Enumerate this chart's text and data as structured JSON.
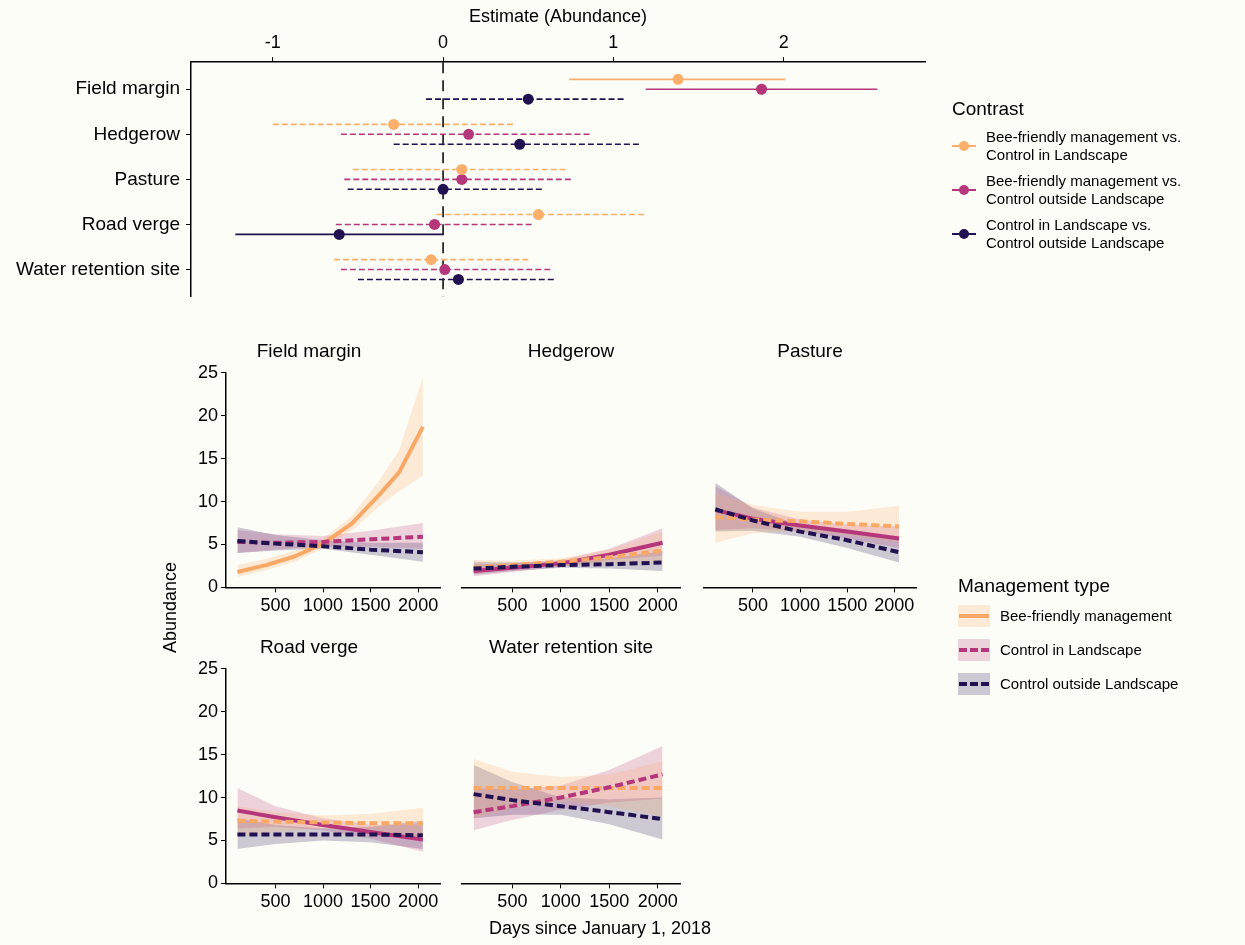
{
  "chart_data": [
    {
      "type": "scatter",
      "orientation": "horizontal",
      "xlabel": "Estimate (Abundance)",
      "legend": "right",
      "legend_title": "Contrast",
      "marker": "circle",
      "categories": [
        "Field margin",
        "Hedgerow",
        "Pasture",
        "Road verge",
        "Water retention site"
      ],
      "xlim": [
        -1.48,
        2.83
      ],
      "xticks": [
        -1,
        0,
        1,
        2
      ],
      "ref_lines": [
        {
          "axis": "x",
          "value": 0,
          "line_style": "dashed",
          "color": "#000000"
        }
      ],
      "series": [
        {
          "name": "Bee-friendly management vs. Control in Landscape",
          "color": "#fcae6b",
          "line_style": "solid",
          "values": [
            1.38,
            null,
            null,
            null,
            null
          ],
          "errors": [
            [
              0.74,
              2.01
            ],
            null,
            null,
            null,
            null
          ]
        },
        {
          "name": "Bee-friendly management vs. Control outside Landscape",
          "color": "#b5367a",
          "line_style": "solid",
          "values": [
            1.87,
            null,
            null,
            null,
            null
          ],
          "errors": [
            [
              1.19,
              2.55
            ],
            null,
            null,
            null,
            null
          ]
        },
        {
          "name": "Control in Landscape vs. Control outside Landscape",
          "color": "#221150",
          "line_style": "solid",
          "values": [
            null,
            null,
            null,
            -0.61,
            null
          ],
          "errors": [
            null,
            null,
            null,
            [
              -1.22,
              0.0
            ],
            null
          ]
        },
        {
          "color": "#fcae6b",
          "line_style": "dashed",
          "values": [
            null,
            -0.29,
            0.11,
            0.56,
            -0.07
          ],
          "errors": [
            null,
            [
              -1.0,
              0.41
            ],
            [
              -0.53,
              0.72
            ],
            [
              -0.04,
              1.18
            ],
            [
              -0.64,
              0.5
            ]
          ]
        },
        {
          "color": "#b5367a",
          "line_style": "dashed",
          "values": [
            null,
            0.15,
            0.11,
            -0.05,
            0.01
          ],
          "errors": [
            null,
            [
              -0.6,
              0.86
            ],
            [
              -0.58,
              0.75
            ],
            [
              -0.63,
              0.52
            ],
            [
              -0.6,
              0.63
            ]
          ]
        },
        {
          "color": "#221150",
          "line_style": "dashed",
          "values": [
            0.5,
            0.45,
            0.0,
            null,
            0.09
          ],
          "errors": [
            [
              -0.1,
              1.06
            ],
            [
              -0.29,
              1.15
            ],
            [
              -0.56,
              0.58
            ],
            null,
            [
              -0.5,
              0.65
            ]
          ]
        }
      ]
    },
    {
      "type": "line",
      "title": "Field margin",
      "xlabel": "Days since January 1, 2018",
      "ylabel": "Abundance",
      "legend": "right",
      "legend_title": "Management type",
      "x": [
        100,
        500,
        1000,
        1500,
        2050
      ],
      "xlim": [
        -20,
        2230
      ],
      "xticks": [
        500,
        1000,
        1500,
        2000
      ],
      "ylim": [
        0,
        25
      ],
      "yticks": [
        0,
        5,
        10,
        15,
        20,
        25
      ],
      "series": [
        {
          "name": "Bee-friendly management",
          "color": "#f9a866",
          "line_style": "solid",
          "x": [
            100,
            400,
            700,
            1000,
            1300,
            1600,
            1800,
            2050
          ],
          "values": [
            1.8,
            2.6,
            3.6,
            5.1,
            7.4,
            10.9,
            13.4,
            18.7
          ],
          "lower": [
            1.2,
            2.0,
            3.0,
            4.5,
            6.6,
            9.5,
            11.2,
            13.0
          ],
          "upper": [
            2.6,
            3.3,
            4.3,
            5.7,
            8.3,
            12.6,
            16.0,
            24.5
          ]
        },
        {
          "name": "Control in Landscape",
          "color": "#b5367a",
          "line_style": "dashed",
          "values": [
            5.3,
            5.2,
            5.3,
            5.6,
            5.9
          ],
          "lower": [
            4.0,
            4.4,
            4.8,
            4.7,
            4.5
          ],
          "upper": [
            6.7,
            6.2,
            6.0,
            6.6,
            7.5
          ]
        },
        {
          "name": "Control outside Landscape",
          "color": "#221150",
          "line_style": "dashed",
          "values": [
            5.4,
            5.1,
            4.8,
            4.4,
            4.1
          ],
          "lower": [
            4.0,
            4.3,
            4.5,
            3.8,
            3.0
          ],
          "upper": [
            7.0,
            6.1,
            5.5,
            5.2,
            5.2
          ]
        }
      ]
    },
    {
      "type": "line",
      "title": "Hedgerow",
      "tick_labels": "x",
      "x": [
        100,
        500,
        1000,
        1500,
        2050
      ],
      "xlim": [
        -20,
        2230
      ],
      "xticks": [
        500,
        1000,
        1500,
        2000
      ],
      "ylim": [
        0,
        25
      ],
      "yticks": [
        0,
        5,
        10,
        15,
        20,
        25
      ],
      "series": [
        {
          "color": "#f9a866",
          "line_style": "dashed",
          "values": [
            2.3,
            2.6,
            3.0,
            3.5,
            4.3
          ],
          "lower": [
            1.6,
            2.1,
            2.6,
            2.8,
            2.8
          ],
          "upper": [
            3.2,
            3.1,
            3.4,
            4.4,
            6.5
          ]
        },
        {
          "color": "#b5367a",
          "line_style": "solid",
          "values": [
            1.9,
            2.3,
            2.8,
            3.8,
            5.2
          ],
          "lower": [
            1.3,
            1.8,
            2.4,
            3.2,
            3.7
          ],
          "upper": [
            2.7,
            2.8,
            3.2,
            4.5,
            6.9
          ]
        },
        {
          "color": "#221150",
          "line_style": "dashed",
          "values": [
            2.2,
            2.4,
            2.6,
            2.7,
            2.9
          ],
          "lower": [
            1.5,
            1.9,
            2.3,
            2.2,
            1.9
          ],
          "upper": [
            3.0,
            2.9,
            2.9,
            3.4,
            4.2
          ]
        }
      ]
    },
    {
      "type": "line",
      "title": "Pasture",
      "tick_labels": "x",
      "x": [
        100,
        500,
        1000,
        1500,
        2050
      ],
      "xlim": [
        -20,
        2230
      ],
      "xticks": [
        500,
        1000,
        1500,
        2000
      ],
      "ylim": [
        0,
        25
      ],
      "yticks": [
        0,
        5,
        10,
        15,
        20,
        25
      ],
      "series": [
        {
          "color": "#f9a866",
          "line_style": "dashed",
          "values": [
            8.2,
            7.9,
            7.7,
            7.4,
            7.1
          ],
          "lower": [
            5.2,
            6.3,
            6.6,
            6.1,
            5.3
          ],
          "upper": [
            11.0,
            9.6,
            8.8,
            8.8,
            9.5
          ]
        },
        {
          "color": "#b5367a",
          "line_style": "solid",
          "values": [
            9.0,
            8.0,
            7.2,
            6.5,
            5.7
          ],
          "lower": [
            6.7,
            6.9,
            6.5,
            5.7,
            4.6
          ],
          "upper": [
            11.8,
            9.3,
            7.9,
            7.3,
            7.1
          ]
        },
        {
          "color": "#221150",
          "line_style": "dashed",
          "values": [
            9.1,
            7.8,
            6.5,
            5.5,
            4.1
          ],
          "lower": [
            6.5,
            6.6,
            5.9,
            4.6,
            2.9
          ],
          "upper": [
            12.2,
            9.2,
            7.2,
            6.5,
            5.6
          ]
        }
      ]
    },
    {
      "type": "line",
      "title": "Road verge",
      "x": [
        100,
        500,
        1000,
        1500,
        2050
      ],
      "xlim": [
        -20,
        2230
      ],
      "xticks": [
        500,
        1000,
        1500,
        2000
      ],
      "ylim": [
        0,
        25
      ],
      "yticks": [
        0,
        5,
        10,
        15,
        20,
        25
      ],
      "series": [
        {
          "color": "#f9a866",
          "line_style": "dashed",
          "values": [
            7.3,
            7.2,
            7.1,
            7.0,
            7.0
          ],
          "lower": [
            5.5,
            6.0,
            6.4,
            6.0,
            5.5
          ],
          "upper": [
            9.0,
            8.3,
            7.9,
            8.1,
            8.8
          ]
        },
        {
          "color": "#b5367a",
          "line_style": "solid",
          "values": [
            8.5,
            7.7,
            6.8,
            6.0,
            5.1
          ],
          "lower": [
            6.4,
            6.6,
            6.2,
            5.2,
            3.7
          ],
          "upper": [
            11.1,
            9.0,
            7.6,
            6.8,
            6.9
          ]
        },
        {
          "color": "#221150",
          "line_style": "dashed",
          "values": [
            5.7,
            5.7,
            5.7,
            5.7,
            5.6
          ],
          "lower": [
            4.0,
            4.6,
            5.0,
            4.8,
            4.0
          ],
          "upper": [
            7.6,
            6.8,
            6.4,
            6.6,
            7.3
          ]
        }
      ]
    },
    {
      "type": "line",
      "title": "Water retention site",
      "tick_labels": "x",
      "x": [
        100,
        500,
        1000,
        1500,
        2050
      ],
      "xlim": [
        -20,
        2230
      ],
      "xticks": [
        500,
        1000,
        1500,
        2000
      ],
      "ylim": [
        0,
        25
      ],
      "yticks": [
        0,
        5,
        10,
        15,
        20,
        25
      ],
      "series": [
        {
          "color": "#f9a866",
          "line_style": "dashed",
          "values": [
            11.1,
            11.1,
            11.1,
            11.1,
            11.1
          ],
          "lower": [
            7.6,
            8.8,
            9.6,
            9.0,
            7.8
          ],
          "upper": [
            14.5,
            13.0,
            12.4,
            12.7,
            14.2
          ]
        },
        {
          "color": "#b5367a",
          "line_style": "dashed",
          "values": [
            8.3,
            9.0,
            10.0,
            11.2,
            12.7
          ],
          "lower": [
            6.2,
            7.4,
            8.6,
            9.4,
            9.9
          ],
          "upper": [
            11.1,
            10.9,
            11.4,
            13.2,
            16.0
          ]
        },
        {
          "color": "#221150",
          "line_style": "dashed",
          "values": [
            10.4,
            9.7,
            9.0,
            8.3,
            7.5
          ],
          "lower": [
            7.6,
            8.0,
            8.0,
            6.9,
            5.1
          ],
          "upper": [
            13.8,
            11.8,
            10.0,
            9.8,
            10.0
          ]
        }
      ]
    }
  ]
}
